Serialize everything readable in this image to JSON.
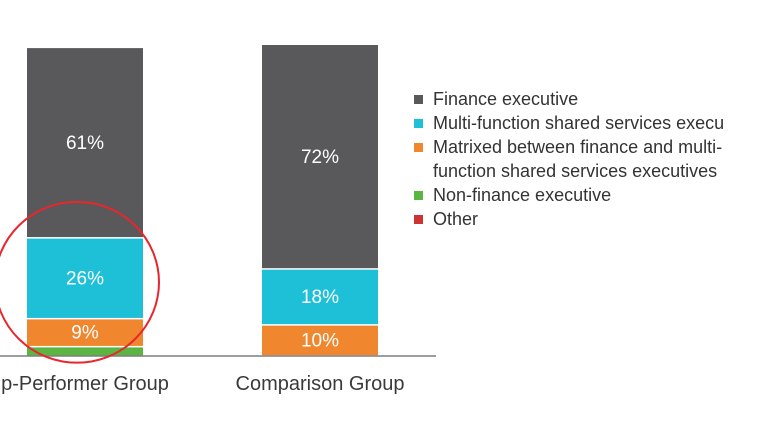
{
  "chart_data": {
    "type": "bar",
    "stacked": true,
    "categories": [
      "p-Performer Group",
      "Comparison Group"
    ],
    "series": [
      {
        "name": "Non-finance executive",
        "color": "#5bb543",
        "values": [
          3,
          0
        ],
        "labels": [
          "",
          ""
        ]
      },
      {
        "name": "Matrixed between finance and multi-function shared services executives",
        "color": "#f0872f",
        "values": [
          9,
          10
        ],
        "labels": [
          "9%",
          "10%"
        ]
      },
      {
        "name": "Multi-function shared services execu",
        "color": "#1ec0d8",
        "values": [
          26,
          18
        ],
        "labels": [
          "26%",
          "18%"
        ]
      },
      {
        "name": "Finance executive",
        "color": "#59595b",
        "values": [
          61,
          72
        ],
        "labels": [
          "61%",
          "72%"
        ]
      }
    ],
    "legend": [
      {
        "name": "Finance executive",
        "color": "#59595b",
        "lines": [
          "Finance executive"
        ]
      },
      {
        "name": "Multi-function shared services execu",
        "color": "#1ec0d8",
        "lines": [
          "Multi-function shared services execu"
        ]
      },
      {
        "name": "Matrixed between finance and multi-function shared services executives",
        "color": "#f0872f",
        "lines": [
          "Matrixed between finance and multi-",
          "function shared services executives"
        ]
      },
      {
        "name": "Non-finance executive",
        "color": "#5bb543",
        "lines": [
          "Non-finance executive"
        ]
      },
      {
        "name": "Other",
        "color": "#cc3333",
        "lines": [
          "Other"
        ]
      }
    ],
    "legend_position": "right",
    "highlight": {
      "category_index": 0,
      "series_name": "Multi-function shared services execu",
      "color": "#e8262c"
    },
    "ylim": [
      0,
      100
    ],
    "grid": false
  }
}
